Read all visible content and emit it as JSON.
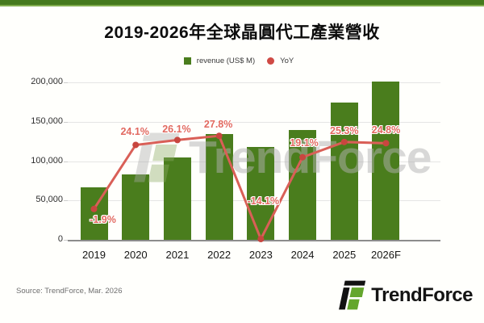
{
  "title": "2019-2026年全球晶圓代工產業營收",
  "legend": {
    "revenue_label": "revenue (US$ M)",
    "yoy_label": "YoY"
  },
  "colors": {
    "banner_green": "#457a1e",
    "bar_green": "#4a7d1d",
    "line_red": "#d95f57",
    "point_red": "#c8463f",
    "yoy_label_pink": "#e26a60",
    "logo_green": "#64a62d"
  },
  "chart_data": {
    "type": "bar+line combo",
    "title": "2019-2026年全球晶圓代工產業營收",
    "categories": [
      "2019",
      "2020",
      "2021",
      "2022",
      "2023",
      "2024",
      "2025",
      "2026F"
    ],
    "series": [
      {
        "name": "revenue (US$ M)",
        "type": "bar",
        "axis": "left",
        "color": "#4a7d1d",
        "values": [
          67000,
          83000,
          105000,
          134500,
          117500,
          139500,
          174000,
          214400
        ],
        "note": "2026F bar is clipped at the top of the plot area (~201,000 visible)"
      },
      {
        "name": "YoY",
        "type": "line",
        "axis": "hidden-right",
        "color": "#d95f57",
        "values": [
          -1.9,
          24.1,
          26.1,
          27.8,
          -14.1,
          19.1,
          25.3,
          24.8
        ],
        "point_labels": [
          "-1.9%",
          "24.1%",
          "26.1%",
          "27.8%",
          "-14.1%",
          "19.1%",
          "25.3%",
          "24.8%"
        ],
        "label_offsets": [
          [
            11,
            13
          ],
          [
            -1,
            -16
          ],
          [
            -1,
            -13
          ],
          [
            -1,
            -14
          ],
          [
            3,
            -47
          ],
          [
            2,
            -18
          ],
          [
            0,
            -14
          ],
          [
            0,
            -16
          ]
        ]
      }
    ],
    "y_axis": {
      "tick_labels": [
        "0",
        "50,000",
        "100,000",
        "150,000",
        "200,000"
      ],
      "tick_values": [
        0,
        50000,
        100000,
        150000,
        200000
      ],
      "visible_max": 203000
    },
    "hidden_yoy_axis_range": [
      -14.43,
      49.5
    ],
    "gridlines": true,
    "legend_position": "top-center"
  },
  "source": "Source: TrendForce, Mar. 2026",
  "watermark": {
    "text": "TrendForce"
  },
  "logo": {
    "text": "TrendForce"
  }
}
